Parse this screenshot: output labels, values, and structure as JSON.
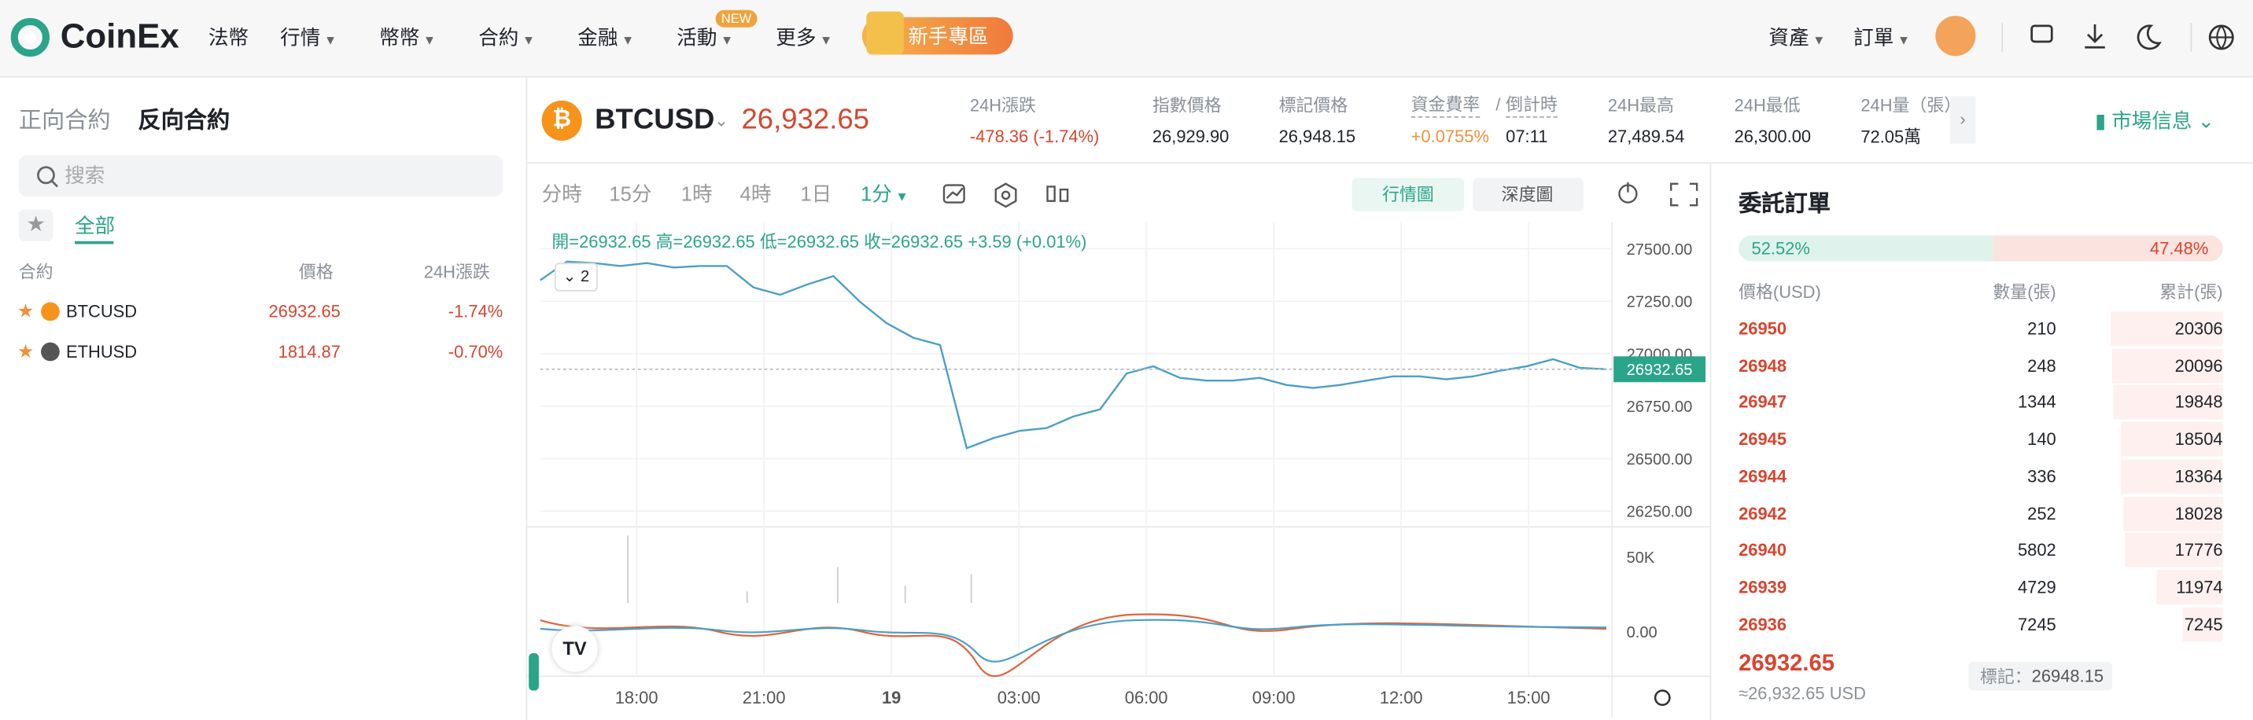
{
  "header": {
    "logo": "CoinEx",
    "nav": [
      "法幣",
      "行情",
      "幣幣",
      "合約",
      "金融",
      "活動",
      "更多"
    ],
    "badge": "NEW",
    "promo": "新手專區",
    "right": [
      "資產",
      "訂單"
    ]
  },
  "sidebar": {
    "tabs": [
      "正向合約",
      "反向合約"
    ],
    "search": "搜索",
    "filter": "全部",
    "columns": [
      "合約",
      "價格",
      "24H漲跌"
    ],
    "rows": [
      {
        "symbol": "BTCUSD",
        "price": "26932.65",
        "change": "-1.74%"
      },
      {
        "symbol": "ETHUSD",
        "price": "1814.87",
        "change": "-0.70%"
      }
    ]
  },
  "ticker": {
    "symbol": "BTCUSD",
    "price": "26,932.65",
    "stats": [
      {
        "label": "24H漲跌",
        "value": "-478.36 (-1.74%)"
      },
      {
        "label": "指數價格",
        "value": "26,929.90"
      },
      {
        "label": "標記價格",
        "value": "26,948.15"
      },
      {
        "label": "24H最高",
        "value": "27,489.54"
      },
      {
        "label": "24H最低",
        "value": "26,300.00"
      },
      {
        "label": "24H量（張）",
        "value": "72.05萬"
      }
    ],
    "funding": {
      "label": "資金費率",
      "sep": "/",
      "label2": "倒計時",
      "value": "+0.0755%",
      "value2": "07:11"
    },
    "market_info": "市場信息"
  },
  "toolbar": {
    "intervals": [
      "分時",
      "15分",
      "1時",
      "4時",
      "1日",
      "1分"
    ],
    "tabs": [
      "行情圖",
      "深度圖"
    ]
  },
  "chart_data": {
    "type": "line",
    "ohlc": "開=26932.65 高=26932.65 低=26932.65 收=26932.65 +3.59 (+0.01%)",
    "indicator": "2",
    "last_price": "26932.65",
    "ylim": [
      26175,
      27625
    ],
    "yticks": [
      {
        "value": 27500,
        "label": "27500.00"
      },
      {
        "value": 27250,
        "label": "27250.00"
      },
      {
        "value": 27000,
        "label": "27000.00"
      },
      {
        "value": 26750,
        "label": "26750.00"
      },
      {
        "value": 26500,
        "label": "26500.00"
      },
      {
        "value": 26250,
        "label": "26250.00"
      }
    ],
    "xticks": [
      "18:00",
      "21:00",
      "19",
      "03:00",
      "06:00",
      "09:00",
      "12:00",
      "15:00"
    ],
    "series": [
      {
        "color": "#4a9fc9",
        "values": [
          27350,
          27439,
          27432,
          27418,
          27432,
          27411,
          27418,
          27418,
          27316,
          27281,
          27329,
          27370,
          27247,
          27145,
          27076,
          27042,
          26550,
          26598,
          26633,
          26646,
          26701,
          26735,
          26906,
          26940,
          26885,
          26872,
          26872,
          26885,
          26851,
          26837,
          26851,
          26872,
          26892,
          26892,
          26878,
          26892,
          26919,
          26940,
          26974,
          26933,
          26926
        ]
      }
    ],
    "volume_label": "50K",
    "macd_label": "0.00"
  },
  "orderbook": {
    "title": "委託訂單",
    "buy": {
      "value": 52.52,
      "label": "52.52%"
    },
    "sell": {
      "value": 47.48,
      "label": "47.48%"
    },
    "columns": [
      "價格(USD)",
      "數量(張)",
      "累計(張)"
    ],
    "rows": [
      [
        26950,
        210,
        20306
      ],
      [
        26948,
        248,
        20096
      ],
      [
        26947,
        1344,
        19848
      ],
      [
        26945,
        140,
        18504
      ],
      [
        26944,
        336,
        18364
      ],
      [
        26942,
        252,
        18028
      ],
      [
        26940,
        5802,
        17776
      ],
      [
        26939,
        4729,
        11974
      ],
      [
        26936,
        7245,
        7245
      ]
    ],
    "last": "26932.65",
    "approx": "≈26,932.65 USD",
    "mark_label": "標記：",
    "mark_value": "26948.15"
  }
}
